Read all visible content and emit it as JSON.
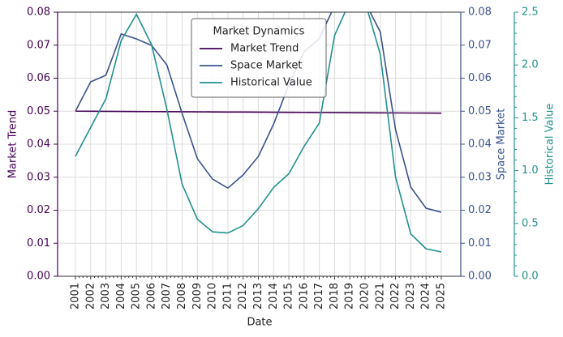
{
  "chart_data": {
    "type": "line",
    "xlabel": "Date",
    "ylabel": "Market Trend",
    "y2label": "Space Market",
    "y3label": "Historical Value",
    "categories": [
      "2001",
      "2002",
      "2003",
      "2004",
      "2005",
      "2006",
      "2007",
      "2008",
      "2009",
      "2010",
      "2011",
      "2012",
      "2013",
      "2014",
      "2015",
      "2016",
      "2017",
      "2018",
      "2019",
      "2020",
      "2021",
      "2022",
      "2023",
      "2024",
      "2025"
    ],
    "series": [
      {
        "name": "Market Trend",
        "color": "#440154",
        "axis": "y",
        "values": [
          0.05,
          0.04998,
          0.04995,
          0.04993,
          0.0499,
          0.04988,
          0.04985,
          0.04983,
          0.0498,
          0.04978,
          0.04975,
          0.04973,
          0.0497,
          0.04968,
          0.04965,
          0.04963,
          0.0496,
          0.04958,
          0.04955,
          0.04953,
          0.0495,
          0.04948,
          0.04945,
          0.04943,
          0.0494
        ]
      },
      {
        "name": "Space Market",
        "color": "#3b528b",
        "axis": "y2",
        "values": [
          0.05,
          0.0589,
          0.0609,
          0.0734,
          0.0719,
          0.0699,
          0.064,
          0.0493,
          0.0356,
          0.0294,
          0.0267,
          0.0307,
          0.0363,
          0.0461,
          0.058,
          0.068,
          0.072,
          0.082,
          0.085,
          0.083,
          0.074,
          0.0444,
          0.027,
          0.0206,
          0.0194
        ]
      },
      {
        "name": "Historical Value",
        "color": "#21918c",
        "axis": "y3",
        "values": [
          1.135,
          1.41,
          1.68,
          2.23,
          2.48,
          2.19,
          1.58,
          0.87,
          0.54,
          0.42,
          0.41,
          0.48,
          0.64,
          0.84,
          0.97,
          1.23,
          1.45,
          2.28,
          2.6,
          2.6,
          2.1,
          0.94,
          0.4,
          0.26,
          0.23
        ]
      }
    ],
    "ylim": [
      0,
      0.08
    ],
    "yticks": [
      {
        "value": 0,
        "label": "0.00"
      },
      {
        "value": 0.01,
        "label": "0.01"
      },
      {
        "value": 0.02,
        "label": "0.02"
      },
      {
        "value": 0.03,
        "label": "0.03"
      },
      {
        "value": 0.04,
        "label": "0.04"
      },
      {
        "value": 0.05,
        "label": "0.05"
      },
      {
        "value": 0.06,
        "label": "0.06"
      },
      {
        "value": 0.07,
        "label": "0.07"
      },
      {
        "value": 0.08,
        "label": "0.08"
      }
    ],
    "y2lim": [
      0,
      0.08
    ],
    "y2ticks": [
      {
        "value": 0,
        "label": "0.00"
      },
      {
        "value": 0.01,
        "label": "0.01"
      },
      {
        "value": 0.02,
        "label": "0.02"
      },
      {
        "value": 0.03,
        "label": "0.03"
      },
      {
        "value": 0.04,
        "label": "0.04"
      },
      {
        "value": 0.05,
        "label": "0.05"
      },
      {
        "value": 0.06,
        "label": "0.06"
      },
      {
        "value": 0.07,
        "label": "0.07"
      },
      {
        "value": 0.08,
        "label": "0.08"
      }
    ],
    "y3lim": [
      0,
      2.5
    ],
    "y3ticks": [
      {
        "value": 0,
        "label": "0.0"
      },
      {
        "value": 0.5,
        "label": "0.5"
      },
      {
        "value": 1,
        "label": "1.0"
      },
      {
        "value": 1.5,
        "label": "1.5"
      },
      {
        "value": 2,
        "label": "2.0"
      },
      {
        "value": 2.5,
        "label": "2.5"
      }
    ],
    "grid": true,
    "legend": {
      "title": "Market Dynamics",
      "loc": "upper center"
    }
  }
}
